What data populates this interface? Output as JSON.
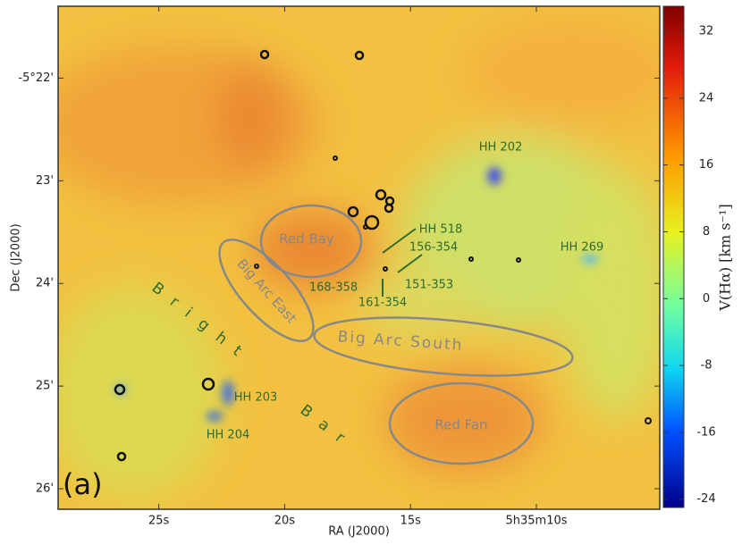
{
  "chart_data": {
    "type": "image",
    "x_label": "RA (J2000)",
    "y_label": "Dec (J2000)",
    "xlim": [
      29,
      5.1
    ],
    "ylim": [
      -26.2,
      -21.3
    ],
    "xticks": [
      {
        "value": 25,
        "label": "25s"
      },
      {
        "value": 20,
        "label": "20s"
      },
      {
        "value": 15,
        "label": "15s"
      },
      {
        "value": 10,
        "label": "5h35m10s"
      }
    ],
    "yticks": [
      {
        "value": -22,
        "label": "-5°22'"
      },
      {
        "value": -23,
        "label": "23'"
      },
      {
        "value": -24,
        "label": "24'"
      },
      {
        "value": -25,
        "label": "25'"
      },
      {
        "value": -26,
        "label": "26'"
      }
    ],
    "colorbar": {
      "label": "V(Hα) [km s⁻¹]",
      "clim": [
        -25,
        35
      ],
      "ticks": [
        32,
        24,
        16,
        8,
        0,
        -8,
        -16,
        -24
      ]
    },
    "annotations": [
      "HH 202",
      "HH 518",
      "156-354",
      "HH 269",
      "168-358",
      "151-353",
      "161-354",
      "HH 203",
      "HH 204"
    ],
    "regions": [
      "Red Bay",
      "Big Arc East",
      "Big Arc South",
      "Red Fan"
    ],
    "feature_words": [
      "Bright",
      "Bar"
    ],
    "panel_label": "(a)"
  }
}
